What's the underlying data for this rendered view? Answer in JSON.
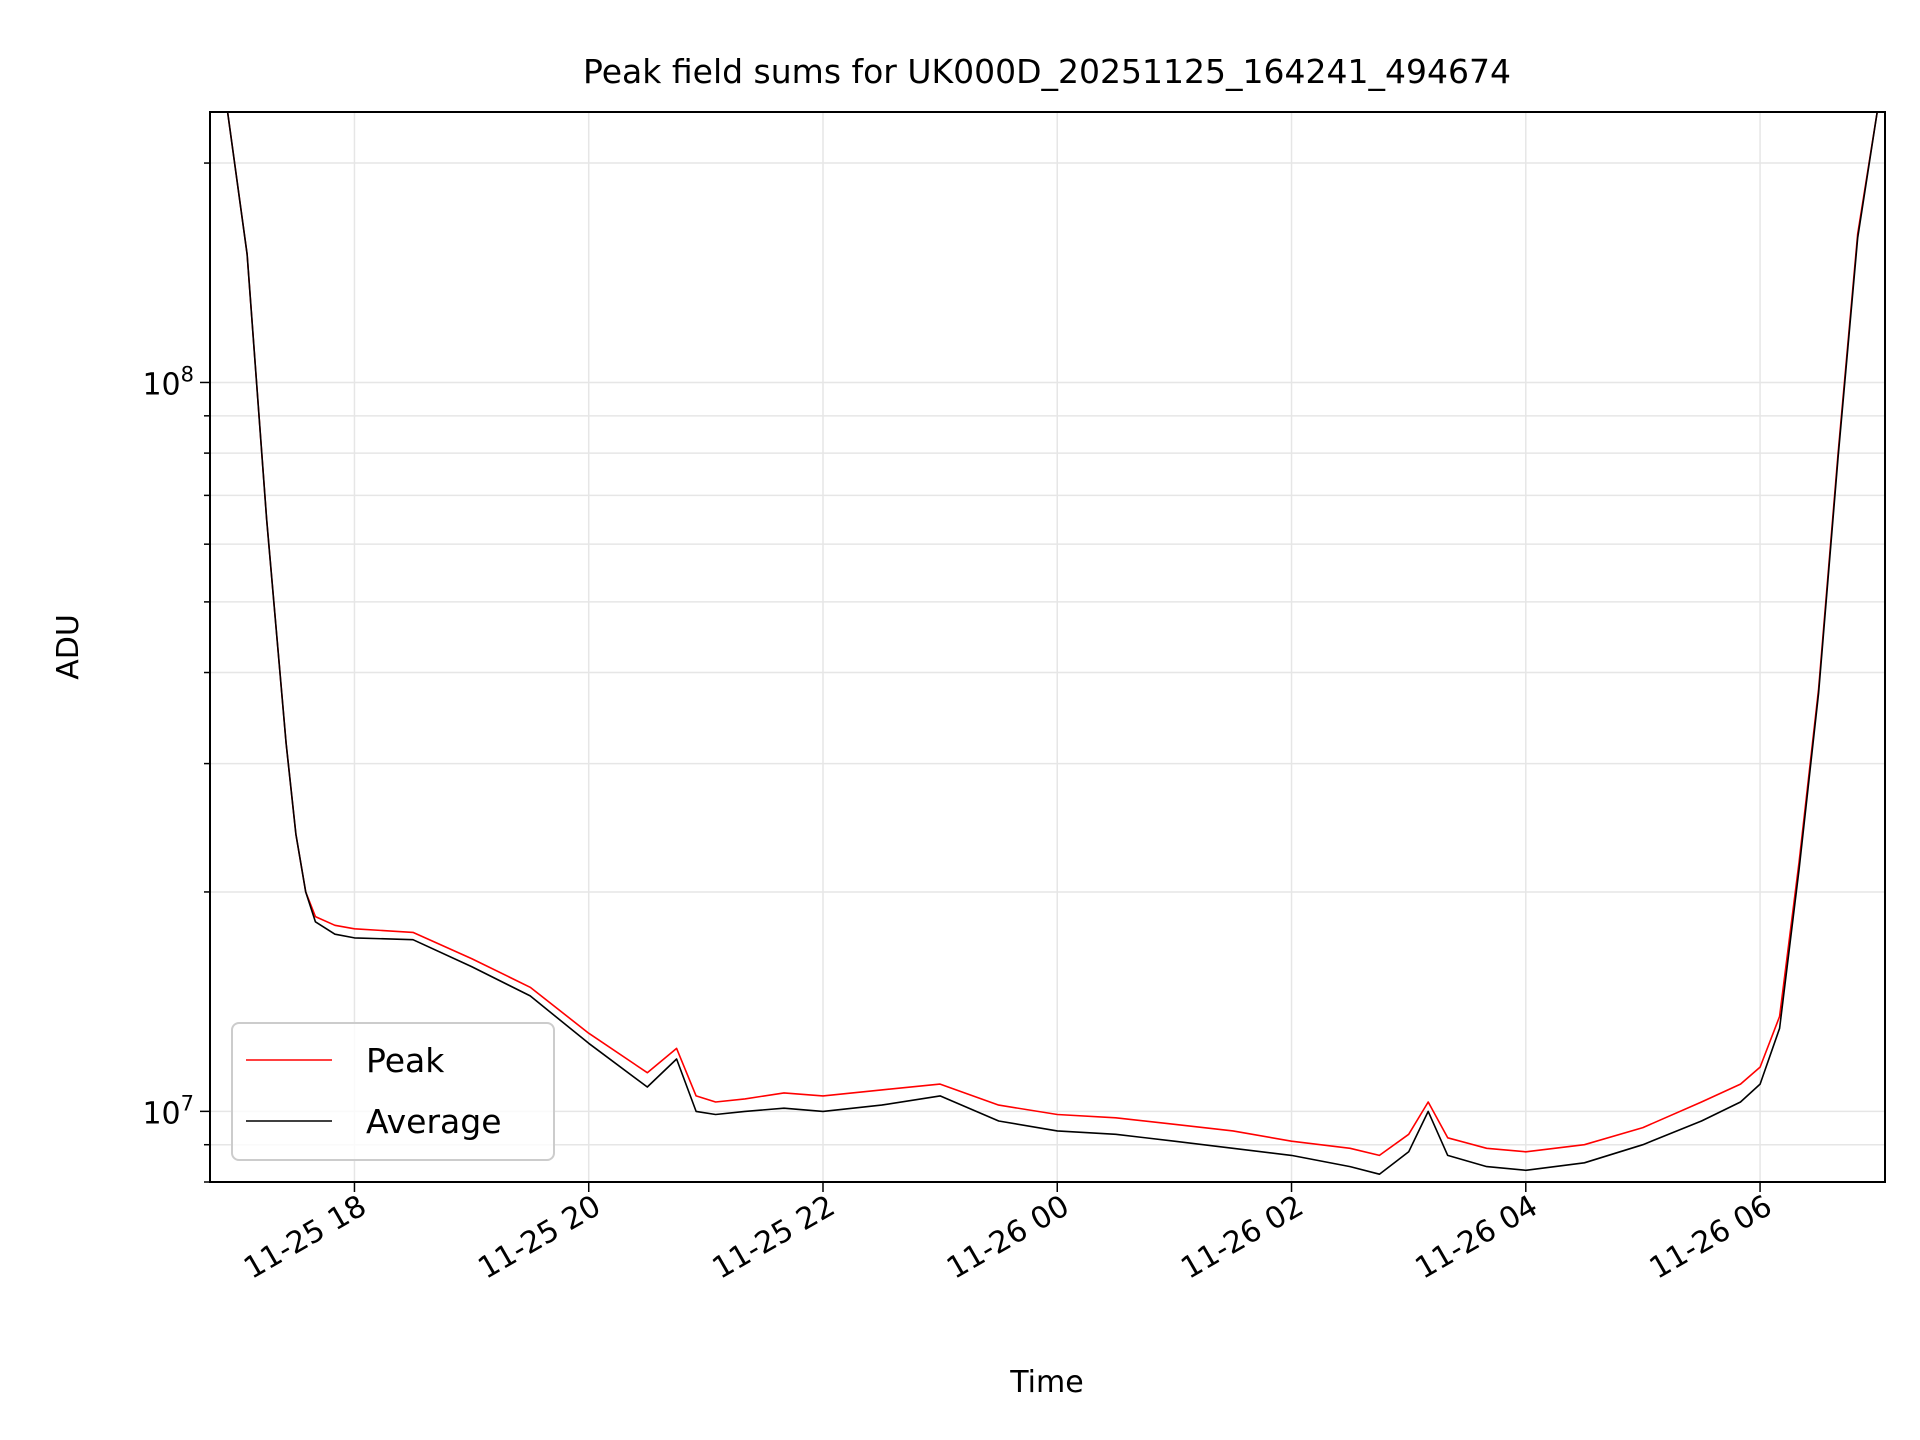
{
  "chart_data": {
    "type": "line",
    "title": "Peak field sums for UK000D_20251125_164241_494674",
    "xlabel": "Time",
    "ylabel": "ADU",
    "yscale": "log",
    "ylim": [
      8000000,
      235000000
    ],
    "xlim": [
      "2025-11-25 16:46",
      "2025-11-26 07:04"
    ],
    "x_tick_labels": [
      "11-25 18",
      "11-25 20",
      "11-25 22",
      "11-26 00",
      "11-26 02",
      "11-26 04",
      "11-26 06"
    ],
    "x_ticks": [
      "2025-11-25 18:00",
      "2025-11-25 20:00",
      "2025-11-25 22:00",
      "2025-11-26 00:00",
      "2025-11-26 02:00",
      "2025-11-26 04:00",
      "2025-11-26 06:00"
    ],
    "y_tick_labels": [
      {
        "base": "10",
        "exp": "7",
        "value": 10000000
      },
      {
        "base": "10",
        "exp": "8",
        "value": 100000000
      }
    ],
    "grid": true,
    "legend_position": "lower-left",
    "series": [
      {
        "name": "Peak",
        "color": "#ff0000",
        "x": [
          "2025-11-25 16:55",
          "2025-11-25 17:05",
          "2025-11-25 17:15",
          "2025-11-25 17:25",
          "2025-11-25 17:30",
          "2025-11-25 17:35",
          "2025-11-25 17:40",
          "2025-11-25 17:50",
          "2025-11-25 18:00",
          "2025-11-25 18:30",
          "2025-11-25 19:00",
          "2025-11-25 19:30",
          "2025-11-25 20:00",
          "2025-11-25 20:30",
          "2025-11-25 20:45",
          "2025-11-25 20:55",
          "2025-11-25 21:05",
          "2025-11-25 21:20",
          "2025-11-25 21:40",
          "2025-11-25 22:00",
          "2025-11-25 22:30",
          "2025-11-25 23:00",
          "2025-11-25 23:30",
          "2025-11-26 00:00",
          "2025-11-26 00:30",
          "2025-11-26 01:00",
          "2025-11-26 01:30",
          "2025-11-26 02:00",
          "2025-11-26 02:30",
          "2025-11-26 02:45",
          "2025-11-26 03:00",
          "2025-11-26 03:10",
          "2025-11-26 03:20",
          "2025-11-26 03:40",
          "2025-11-26 04:00",
          "2025-11-26 04:30",
          "2025-11-26 05:00",
          "2025-11-26 05:30",
          "2025-11-26 05:50",
          "2025-11-26 06:00",
          "2025-11-26 06:10",
          "2025-11-26 06:20",
          "2025-11-26 06:30",
          "2025-11-26 06:40",
          "2025-11-26 06:50",
          "2025-11-26 07:00"
        ],
        "y": [
          235000000,
          150000000,
          65000000,
          32000000,
          24000000,
          20000000,
          18500000,
          18000000,
          17800000,
          17600000,
          16200000,
          14800000,
          12800000,
          11300000,
          12200000,
          10500000,
          10300000,
          10400000,
          10600000,
          10500000,
          10700000,
          10900000,
          10200000,
          9900000,
          9800000,
          9600000,
          9400000,
          9100000,
          8900000,
          8700000,
          9300000,
          10300000,
          9200000,
          8900000,
          8800000,
          9000000,
          9500000,
          10300000,
          10900000,
          11500000,
          13500000,
          22000000,
          38000000,
          80000000,
          160000000,
          235000000
        ]
      },
      {
        "name": "Average",
        "color": "#000000",
        "x": [
          "2025-11-25 16:55",
          "2025-11-25 17:05",
          "2025-11-25 17:15",
          "2025-11-25 17:25",
          "2025-11-25 17:30",
          "2025-11-25 17:35",
          "2025-11-25 17:40",
          "2025-11-25 17:50",
          "2025-11-25 18:00",
          "2025-11-25 18:30",
          "2025-11-25 19:00",
          "2025-11-25 19:30",
          "2025-11-25 20:00",
          "2025-11-25 20:30",
          "2025-11-25 20:45",
          "2025-11-25 20:55",
          "2025-11-25 21:05",
          "2025-11-25 21:20",
          "2025-11-25 21:40",
          "2025-11-25 22:00",
          "2025-11-25 22:30",
          "2025-11-25 23:00",
          "2025-11-25 23:30",
          "2025-11-26 00:00",
          "2025-11-26 00:30",
          "2025-11-26 01:00",
          "2025-11-26 01:30",
          "2025-11-26 02:00",
          "2025-11-26 02:30",
          "2025-11-26 02:45",
          "2025-11-26 03:00",
          "2025-11-26 03:10",
          "2025-11-26 03:20",
          "2025-11-26 03:40",
          "2025-11-26 04:00",
          "2025-11-26 04:30",
          "2025-11-26 05:00",
          "2025-11-26 05:30",
          "2025-11-26 05:50",
          "2025-11-26 06:00",
          "2025-11-26 06:10",
          "2025-11-26 06:20",
          "2025-11-26 06:30",
          "2025-11-26 06:40",
          "2025-11-26 06:50",
          "2025-11-26 07:00"
        ],
        "y": [
          235000000,
          150000000,
          65000000,
          32000000,
          24000000,
          20000000,
          18200000,
          17500000,
          17300000,
          17200000,
          15800000,
          14400000,
          12400000,
          10800000,
          11800000,
          10000000,
          9900000,
          10000000,
          10100000,
          10000000,
          10200000,
          10500000,
          9700000,
          9400000,
          9300000,
          9100000,
          8900000,
          8700000,
          8400000,
          8200000,
          8800000,
          10000000,
          8700000,
          8400000,
          8300000,
          8500000,
          9000000,
          9700000,
          10300000,
          10900000,
          13000000,
          21500000,
          37500000,
          79000000,
          158000000,
          235000000
        ]
      }
    ]
  }
}
